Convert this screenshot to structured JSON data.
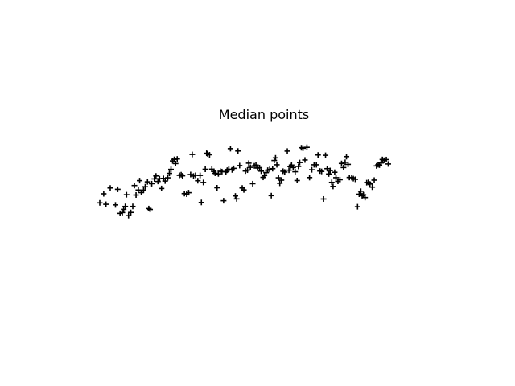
{
  "chart_data": {
    "type": "scatter",
    "title": "Median points",
    "marker": "plus",
    "marker_color": "#000000",
    "grid": false,
    "axes_visible": false,
    "xlim": [
      0,
      100
    ],
    "ylim": [
      0,
      100
    ],
    "points": [
      {
        "x": 0.0,
        "y": 41.5
      },
      {
        "x": 1.2,
        "y": 50.4
      },
      {
        "x": 1.9,
        "y": 40.1
      },
      {
        "x": 3.2,
        "y": 56.1
      },
      {
        "x": 4.8,
        "y": 39.5
      },
      {
        "x": 5.5,
        "y": 54.8
      },
      {
        "x": 6.2,
        "y": 31.2
      },
      {
        "x": 6.9,
        "y": 32.0
      },
      {
        "x": 7.3,
        "y": 35.1
      },
      {
        "x": 7.8,
        "y": 38.0
      },
      {
        "x": 8.2,
        "y": 49.5
      },
      {
        "x": 8.8,
        "y": 29.0
      },
      {
        "x": 9.5,
        "y": 32.1
      },
      {
        "x": 10.1,
        "y": 38.0
      },
      {
        "x": 10.6,
        "y": 58.5
      },
      {
        "x": 11.1,
        "y": 49.2
      },
      {
        "x": 11.8,
        "y": 54.1
      },
      {
        "x": 12.2,
        "y": 63.3
      },
      {
        "x": 12.7,
        "y": 51.6
      },
      {
        "x": 13.4,
        "y": 54.0
      },
      {
        "x": 13.9,
        "y": 57.3
      },
      {
        "x": 14.6,
        "y": 62.1
      },
      {
        "x": 15.0,
        "y": 35.9
      },
      {
        "x": 15.4,
        "y": 35.0
      },
      {
        "x": 15.9,
        "y": 60.3
      },
      {
        "x": 16.7,
        "y": 65.0
      },
      {
        "x": 17.2,
        "y": 67.9
      },
      {
        "x": 17.8,
        "y": 62.5
      },
      {
        "x": 18.3,
        "y": 65.2
      },
      {
        "x": 18.9,
        "y": 55.6
      },
      {
        "x": 19.5,
        "y": 65.5
      },
      {
        "x": 20.0,
        "y": 62.9
      },
      {
        "x": 20.8,
        "y": 66.1
      },
      {
        "x": 21.3,
        "y": 70.4
      },
      {
        "x": 21.8,
        "y": 74.3
      },
      {
        "x": 22.3,
        "y": 82.6
      },
      {
        "x": 22.8,
        "y": 84.1
      },
      {
        "x": 23.2,
        "y": 80.0
      },
      {
        "x": 23.7,
        "y": 84.5
      },
      {
        "x": 24.4,
        "y": 68.5
      },
      {
        "x": 24.9,
        "y": 69.1
      },
      {
        "x": 25.3,
        "y": 68.0
      },
      {
        "x": 25.9,
        "y": 50.6
      },
      {
        "x": 26.6,
        "y": 50.0
      },
      {
        "x": 27.2,
        "y": 51.5
      },
      {
        "x": 27.8,
        "y": 69.3
      },
      {
        "x": 28.3,
        "y": 88.9
      },
      {
        "x": 28.7,
        "y": 67.8
      },
      {
        "x": 29.3,
        "y": 68.5
      },
      {
        "x": 30.0,
        "y": 63.2
      },
      {
        "x": 30.7,
        "y": 68.4
      },
      {
        "x": 31.1,
        "y": 41.9
      },
      {
        "x": 31.7,
        "y": 61.5
      },
      {
        "x": 32.3,
        "y": 74.4
      },
      {
        "x": 32.7,
        "y": 90.1
      },
      {
        "x": 33.0,
        "y": 89.5
      },
      {
        "x": 33.6,
        "y": 88.6
      },
      {
        "x": 34.3,
        "y": 74.5
      },
      {
        "x": 34.9,
        "y": 72.3
      },
      {
        "x": 35.3,
        "y": 70.5
      },
      {
        "x": 35.9,
        "y": 56.3
      },
      {
        "x": 36.3,
        "y": 69.9
      },
      {
        "x": 36.9,
        "y": 72.5
      },
      {
        "x": 37.4,
        "y": 72.1
      },
      {
        "x": 37.9,
        "y": 43.6
      },
      {
        "x": 38.6,
        "y": 72.0
      },
      {
        "x": 39.0,
        "y": 73.5
      },
      {
        "x": 39.5,
        "y": 74.4
      },
      {
        "x": 40.0,
        "y": 94.6
      },
      {
        "x": 40.5,
        "y": 73.8
      },
      {
        "x": 41.0,
        "y": 75.3
      },
      {
        "x": 41.5,
        "y": 48.3
      },
      {
        "x": 41.9,
        "y": 45.4
      },
      {
        "x": 42.3,
        "y": 92.3
      },
      {
        "x": 42.8,
        "y": 78.0
      },
      {
        "x": 43.6,
        "y": 56.1
      },
      {
        "x": 44.1,
        "y": 54.2
      },
      {
        "x": 44.6,
        "y": 72.7
      },
      {
        "x": 45.2,
        "y": 73.6
      },
      {
        "x": 45.6,
        "y": 80.4
      },
      {
        "x": 46.1,
        "y": 76.3
      },
      {
        "x": 46.8,
        "y": 60.3
      },
      {
        "x": 47.3,
        "y": 77.8
      },
      {
        "x": 47.8,
        "y": 78.5
      },
      {
        "x": 48.3,
        "y": 75.6
      },
      {
        "x": 48.9,
        "y": 76.0
      },
      {
        "x": 49.4,
        "y": 72.6
      },
      {
        "x": 50.0,
        "y": 66.5
      },
      {
        "x": 50.4,
        "y": 68.3
      },
      {
        "x": 50.9,
        "y": 71.2
      },
      {
        "x": 51.4,
        "y": 73.5
      },
      {
        "x": 52.0,
        "y": 74.2
      },
      {
        "x": 52.5,
        "y": 48.6
      },
      {
        "x": 52.9,
        "y": 75.0
      },
      {
        "x": 53.4,
        "y": 83.0
      },
      {
        "x": 53.8,
        "y": 85.6
      },
      {
        "x": 54.2,
        "y": 78.8
      },
      {
        "x": 54.7,
        "y": 66.1
      },
      {
        "x": 55.1,
        "y": 60.7
      },
      {
        "x": 55.6,
        "y": 63.8
      },
      {
        "x": 56.1,
        "y": 72.5
      },
      {
        "x": 56.6,
        "y": 71.7
      },
      {
        "x": 57.4,
        "y": 92.2
      },
      {
        "x": 57.9,
        "y": 73.5
      },
      {
        "x": 58.3,
        "y": 77.0
      },
      {
        "x": 58.7,
        "y": 78.5
      },
      {
        "x": 59.2,
        "y": 76.1
      },
      {
        "x": 59.8,
        "y": 72.0
      },
      {
        "x": 60.4,
        "y": 63.4
      },
      {
        "x": 60.8,
        "y": 77.2
      },
      {
        "x": 61.2,
        "y": 81.0
      },
      {
        "x": 61.7,
        "y": 95.5
      },
      {
        "x": 62.2,
        "y": 95.0
      },
      {
        "x": 62.8,
        "y": 83.5
      },
      {
        "x": 63.4,
        "y": 95.9
      },
      {
        "x": 64.2,
        "y": 66.3
      },
      {
        "x": 64.9,
        "y": 73.9
      },
      {
        "x": 65.6,
        "y": 78.8
      },
      {
        "x": 66.3,
        "y": 78.8
      },
      {
        "x": 66.8,
        "y": 88.4
      },
      {
        "x": 67.4,
        "y": 72.7
      },
      {
        "x": 67.9,
        "y": 72.3
      },
      {
        "x": 68.5,
        "y": 45.3
      },
      {
        "x": 69.1,
        "y": 88.1
      },
      {
        "x": 69.6,
        "y": 75.0
      },
      {
        "x": 70.1,
        "y": 69.8
      },
      {
        "x": 70.5,
        "y": 73.2
      },
      {
        "x": 71.0,
        "y": 61.6
      },
      {
        "x": 71.4,
        "y": 57.6
      },
      {
        "x": 71.9,
        "y": 71.5
      },
      {
        "x": 72.3,
        "y": 66.2
      },
      {
        "x": 72.9,
        "y": 62.6
      },
      {
        "x": 73.5,
        "y": 64.2
      },
      {
        "x": 74.0,
        "y": 80.1
      },
      {
        "x": 74.6,
        "y": 76.1
      },
      {
        "x": 75.1,
        "y": 81.2
      },
      {
        "x": 75.5,
        "y": 86.8
      },
      {
        "x": 76.0,
        "y": 79.2
      },
      {
        "x": 76.4,
        "y": 66.4
      },
      {
        "x": 77.1,
        "y": 66.3
      },
      {
        "x": 77.6,
        "y": 65.3
      },
      {
        "x": 78.2,
        "y": 64.6
      },
      {
        "x": 78.9,
        "y": 37.7
      },
      {
        "x": 79.4,
        "y": 50.0
      },
      {
        "x": 79.9,
        "y": 52.9
      },
      {
        "x": 80.3,
        "y": 48.5
      },
      {
        "x": 80.7,
        "y": 49.4
      },
      {
        "x": 81.2,
        "y": 46.7
      },
      {
        "x": 81.7,
        "y": 61.3
      },
      {
        "x": 82.2,
        "y": 61.6
      },
      {
        "x": 82.7,
        "y": 60.0
      },
      {
        "x": 83.4,
        "y": 56.9
      },
      {
        "x": 84.0,
        "y": 63.8
      },
      {
        "x": 84.7,
        "y": 77.7
      },
      {
        "x": 85.2,
        "y": 78.9
      },
      {
        "x": 85.6,
        "y": 78.5
      },
      {
        "x": 86.1,
        "y": 80.6
      },
      {
        "x": 86.5,
        "y": 84.0
      },
      {
        "x": 87.0,
        "y": 83.2
      },
      {
        "x": 87.7,
        "y": 83.9
      },
      {
        "x": 88.3,
        "y": 79.6
      }
    ]
  }
}
